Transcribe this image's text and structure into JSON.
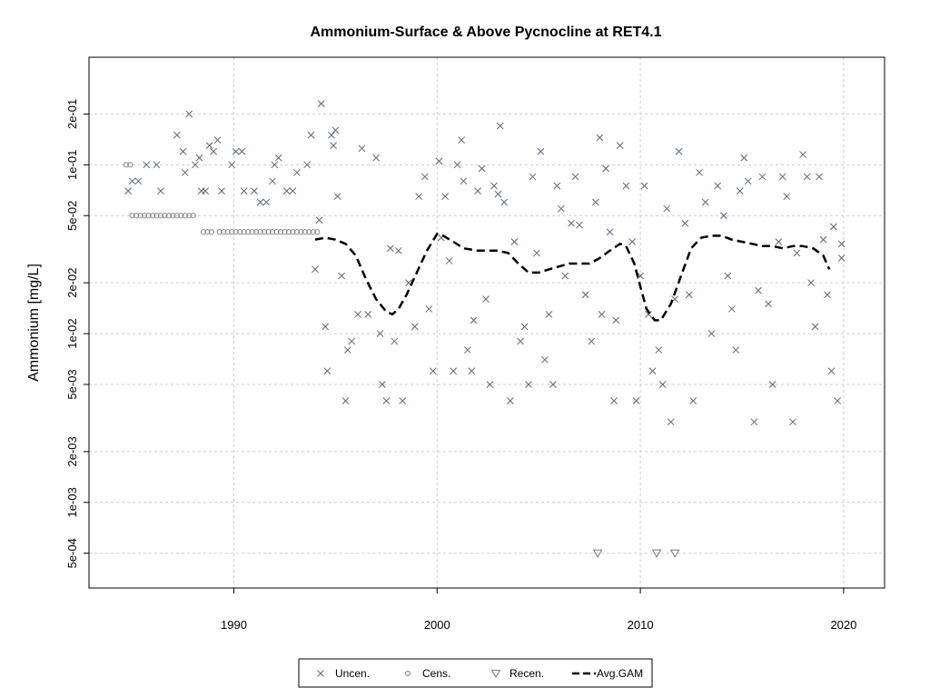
{
  "chart_data": {
    "type": "scatter",
    "title": "Ammonium-Surface & Above Pycnocline at RET4.1",
    "xlabel": "",
    "ylabel": "Ammonium [mg/L]",
    "y_scale": "log",
    "xlim": [
      1983.5,
      2021.3
    ],
    "ylim": [
      0.00037,
      0.36
    ],
    "x_ticks": [
      1990,
      2000,
      2010,
      2020
    ],
    "x_tick_labels": [
      "1990",
      "2000",
      "2010",
      "2020"
    ],
    "y_ticks": [
      0.0005,
      0.001,
      0.002,
      0.005,
      0.01,
      0.02,
      0.05,
      0.1,
      0.2
    ],
    "y_tick_labels": [
      "5e-04",
      "1e-03",
      "2e-03",
      "5e-03",
      "1e-02",
      "2e-02",
      "5e-02",
      "1e-01",
      "2e-01"
    ],
    "grid": true,
    "legend_position": "bottom",
    "colors": {
      "uncensored": "#5a6878",
      "censored": "#888888",
      "recensored": "#777777",
      "gam": "#000000",
      "grid": "#cccccc"
    },
    "series": [
      {
        "name": "Uncen.",
        "marker": "x",
        "points": [
          [
            1984.8,
            0.07
          ],
          [
            1985.0,
            0.08
          ],
          [
            1985.3,
            0.08
          ],
          [
            1985.7,
            0.1
          ],
          [
            1986.2,
            0.1
          ],
          [
            1986.4,
            0.07
          ],
          [
            1987.2,
            0.15
          ],
          [
            1987.5,
            0.12
          ],
          [
            1987.6,
            0.09
          ],
          [
            1987.8,
            0.2
          ],
          [
            1988.1,
            0.1
          ],
          [
            1988.3,
            0.11
          ],
          [
            1988.4,
            0.07
          ],
          [
            1988.6,
            0.07
          ],
          [
            1988.8,
            0.13
          ],
          [
            1989.0,
            0.12
          ],
          [
            1989.2,
            0.14
          ],
          [
            1989.4,
            0.07
          ],
          [
            1989.9,
            0.1
          ],
          [
            1990.1,
            0.12
          ],
          [
            1990.4,
            0.12
          ],
          [
            1990.5,
            0.07
          ],
          [
            1991.0,
            0.07
          ],
          [
            1991.3,
            0.06
          ],
          [
            1991.6,
            0.06
          ],
          [
            1991.9,
            0.08
          ],
          [
            1992.0,
            0.1
          ],
          [
            1992.2,
            0.11
          ],
          [
            1992.6,
            0.07
          ],
          [
            1992.9,
            0.07
          ],
          [
            1993.1,
            0.09
          ],
          [
            1993.6,
            0.1
          ],
          [
            1993.8,
            0.15
          ],
          [
            1994.0,
            0.024
          ],
          [
            1994.2,
            0.047
          ],
          [
            1994.3,
            0.23
          ],
          [
            1994.5,
            0.011
          ],
          [
            1994.6,
            0.006
          ],
          [
            1994.8,
            0.15
          ],
          [
            1994.9,
            0.13
          ],
          [
            1995.0,
            0.16
          ],
          [
            1995.1,
            0.065
          ],
          [
            1995.3,
            0.022
          ],
          [
            1995.5,
            0.004
          ],
          [
            1995.6,
            0.008
          ],
          [
            1995.8,
            0.009
          ],
          [
            1996.1,
            0.013
          ],
          [
            1996.3,
            0.125
          ],
          [
            1996.6,
            0.013
          ],
          [
            1997.0,
            0.11
          ],
          [
            1997.2,
            0.01
          ],
          [
            1997.3,
            0.005
          ],
          [
            1997.5,
            0.004
          ],
          [
            1997.7,
            0.032
          ],
          [
            1997.9,
            0.009
          ],
          [
            1998.1,
            0.031
          ],
          [
            1998.3,
            0.004
          ],
          [
            1998.6,
            0.02
          ],
          [
            1998.9,
            0.011
          ],
          [
            1999.1,
            0.065
          ],
          [
            1999.4,
            0.085
          ],
          [
            1999.6,
            0.014
          ],
          [
            1999.8,
            0.006
          ],
          [
            2000.1,
            0.105
          ],
          [
            2000.2,
            0.037
          ],
          [
            2000.4,
            0.065
          ],
          [
            2000.6,
            0.027
          ],
          [
            2000.8,
            0.006
          ],
          [
            2001.0,
            0.1
          ],
          [
            2001.2,
            0.14
          ],
          [
            2001.3,
            0.08
          ],
          [
            2001.5,
            0.008
          ],
          [
            2001.7,
            0.006
          ],
          [
            2001.8,
            0.012
          ],
          [
            2002.0,
            0.07
          ],
          [
            2002.2,
            0.095
          ],
          [
            2002.4,
            0.016
          ],
          [
            2002.6,
            0.005
          ],
          [
            2002.8,
            0.075
          ],
          [
            2003.0,
            0.067
          ],
          [
            2003.1,
            0.17
          ],
          [
            2003.3,
            0.06
          ],
          [
            2003.6,
            0.004
          ],
          [
            2003.8,
            0.035
          ],
          [
            2004.1,
            0.009
          ],
          [
            2004.3,
            0.011
          ],
          [
            2004.5,
            0.005
          ],
          [
            2004.7,
            0.085
          ],
          [
            2004.9,
            0.03
          ],
          [
            2005.1,
            0.12
          ],
          [
            2005.3,
            0.007
          ],
          [
            2005.5,
            0.013
          ],
          [
            2005.7,
            0.005
          ],
          [
            2005.9,
            0.075
          ],
          [
            2006.1,
            0.055
          ],
          [
            2006.3,
            0.022
          ],
          [
            2006.6,
            0.045
          ],
          [
            2006.8,
            0.085
          ],
          [
            2007.0,
            0.044
          ],
          [
            2007.3,
            0.017
          ],
          [
            2007.6,
            0.009
          ],
          [
            2007.8,
            0.06
          ],
          [
            2008.0,
            0.145
          ],
          [
            2008.1,
            0.013
          ],
          [
            2008.3,
            0.095
          ],
          [
            2008.5,
            0.04
          ],
          [
            2008.7,
            0.004
          ],
          [
            2008.8,
            0.012
          ],
          [
            2009.0,
            0.13
          ],
          [
            2009.3,
            0.075
          ],
          [
            2009.6,
            0.035
          ],
          [
            2009.8,
            0.004
          ],
          [
            2010.0,
            0.022
          ],
          [
            2010.2,
            0.075
          ],
          [
            2010.4,
            0.013
          ],
          [
            2010.6,
            0.006
          ],
          [
            2010.9,
            0.008
          ],
          [
            2011.1,
            0.005
          ],
          [
            2011.3,
            0.055
          ],
          [
            2011.5,
            0.003
          ],
          [
            2011.7,
            0.016
          ],
          [
            2011.9,
            0.12
          ],
          [
            2012.2,
            0.045
          ],
          [
            2012.4,
            0.017
          ],
          [
            2012.6,
            0.004
          ],
          [
            2012.9,
            0.09
          ],
          [
            2013.2,
            0.06
          ],
          [
            2013.5,
            0.01
          ],
          [
            2013.8,
            0.075
          ],
          [
            2014.1,
            0.05
          ],
          [
            2014.3,
            0.022
          ],
          [
            2014.5,
            0.014
          ],
          [
            2014.7,
            0.008
          ],
          [
            2014.9,
            0.07
          ],
          [
            2015.1,
            0.11
          ],
          [
            2015.3,
            0.08
          ],
          [
            2015.6,
            0.003
          ],
          [
            2015.8,
            0.018
          ],
          [
            2016.0,
            0.085
          ],
          [
            2016.3,
            0.015
          ],
          [
            2016.5,
            0.005
          ],
          [
            2016.8,
            0.035
          ],
          [
            2017.0,
            0.085
          ],
          [
            2017.2,
            0.065
          ],
          [
            2017.5,
            0.003
          ],
          [
            2017.7,
            0.03
          ],
          [
            2018.0,
            0.115
          ],
          [
            2018.2,
            0.085
          ],
          [
            2018.4,
            0.02
          ],
          [
            2018.6,
            0.011
          ],
          [
            2018.8,
            0.085
          ],
          [
            2019.0,
            0.036
          ],
          [
            2019.2,
            0.017
          ],
          [
            2019.4,
            0.006
          ],
          [
            2019.5,
            0.043
          ],
          [
            2019.7,
            0.004
          ],
          [
            2019.9,
            0.034
          ],
          [
            2019.9,
            0.028
          ]
        ]
      },
      {
        "name": "Cens.",
        "marker": "o",
        "points": [
          [
            1984.7,
            0.1
          ],
          [
            1984.9,
            0.1
          ],
          [
            1985.0,
            0.05
          ],
          [
            1985.2,
            0.05
          ],
          [
            1985.4,
            0.05
          ],
          [
            1985.6,
            0.05
          ],
          [
            1985.8,
            0.05
          ],
          [
            1986.0,
            0.05
          ],
          [
            1986.2,
            0.05
          ],
          [
            1986.4,
            0.05
          ],
          [
            1986.6,
            0.05
          ],
          [
            1986.8,
            0.05
          ],
          [
            1987.0,
            0.05
          ],
          [
            1987.2,
            0.05
          ],
          [
            1987.4,
            0.05
          ],
          [
            1987.6,
            0.05
          ],
          [
            1987.8,
            0.05
          ],
          [
            1988.0,
            0.05
          ],
          [
            1988.5,
            0.04
          ],
          [
            1988.7,
            0.04
          ],
          [
            1988.9,
            0.04
          ],
          [
            1989.3,
            0.04
          ],
          [
            1989.5,
            0.04
          ],
          [
            1989.7,
            0.04
          ],
          [
            1989.9,
            0.04
          ],
          [
            1990.1,
            0.04
          ],
          [
            1990.3,
            0.04
          ],
          [
            1990.5,
            0.04
          ],
          [
            1990.7,
            0.04
          ],
          [
            1990.9,
            0.04
          ],
          [
            1991.1,
            0.04
          ],
          [
            1991.3,
            0.04
          ],
          [
            1991.5,
            0.04
          ],
          [
            1991.7,
            0.04
          ],
          [
            1991.9,
            0.04
          ],
          [
            1992.1,
            0.04
          ],
          [
            1992.3,
            0.04
          ],
          [
            1992.5,
            0.04
          ],
          [
            1992.7,
            0.04
          ],
          [
            1992.9,
            0.04
          ],
          [
            1993.1,
            0.04
          ],
          [
            1993.3,
            0.04
          ],
          [
            1993.5,
            0.04
          ],
          [
            1993.7,
            0.04
          ],
          [
            1993.9,
            0.04
          ],
          [
            1994.1,
            0.04
          ]
        ]
      },
      {
        "name": "Recen.",
        "marker": "triangle-down",
        "points": [
          [
            2007.9,
            0.0005
          ],
          [
            2010.8,
            0.0005
          ],
          [
            2011.7,
            0.0005
          ]
        ]
      },
      {
        "name": "Avg.GAM",
        "marker": "line-dashed",
        "points": [
          [
            1994.0,
            0.036
          ],
          [
            1994.5,
            0.037
          ],
          [
            1995.0,
            0.036
          ],
          [
            1995.5,
            0.034
          ],
          [
            1996.0,
            0.029
          ],
          [
            1996.5,
            0.021
          ],
          [
            1997.0,
            0.016
          ],
          [
            1997.5,
            0.0135
          ],
          [
            1997.8,
            0.013
          ],
          [
            1998.1,
            0.014
          ],
          [
            1998.5,
            0.017
          ],
          [
            1999.0,
            0.023
          ],
          [
            1999.5,
            0.031
          ],
          [
            2000.0,
            0.039
          ],
          [
            2000.3,
            0.038
          ],
          [
            2000.8,
            0.035
          ],
          [
            2001.3,
            0.032
          ],
          [
            2002.0,
            0.031
          ],
          [
            2002.5,
            0.031
          ],
          [
            2003.0,
            0.031
          ],
          [
            2003.5,
            0.03
          ],
          [
            2004.0,
            0.026
          ],
          [
            2004.5,
            0.023
          ],
          [
            2005.0,
            0.023
          ],
          [
            2005.5,
            0.024
          ],
          [
            2006.0,
            0.025
          ],
          [
            2006.5,
            0.026
          ],
          [
            2007.0,
            0.026
          ],
          [
            2007.5,
            0.026
          ],
          [
            2008.0,
            0.028
          ],
          [
            2008.5,
            0.031
          ],
          [
            2009.0,
            0.034
          ],
          [
            2009.3,
            0.033
          ],
          [
            2009.7,
            0.026
          ],
          [
            2010.0,
            0.019
          ],
          [
            2010.3,
            0.014
          ],
          [
            2010.7,
            0.012
          ],
          [
            2011.0,
            0.012
          ],
          [
            2011.5,
            0.015
          ],
          [
            2012.0,
            0.022
          ],
          [
            2012.5,
            0.032
          ],
          [
            2013.0,
            0.037
          ],
          [
            2013.5,
            0.038
          ],
          [
            2014.0,
            0.038
          ],
          [
            2014.5,
            0.036
          ],
          [
            2015.0,
            0.035
          ],
          [
            2015.5,
            0.034
          ],
          [
            2016.0,
            0.033
          ],
          [
            2016.5,
            0.033
          ],
          [
            2017.0,
            0.032
          ],
          [
            2017.5,
            0.033
          ],
          [
            2018.0,
            0.033
          ],
          [
            2018.5,
            0.032
          ],
          [
            2019.0,
            0.029
          ],
          [
            2019.3,
            0.024
          ]
        ]
      }
    ]
  }
}
